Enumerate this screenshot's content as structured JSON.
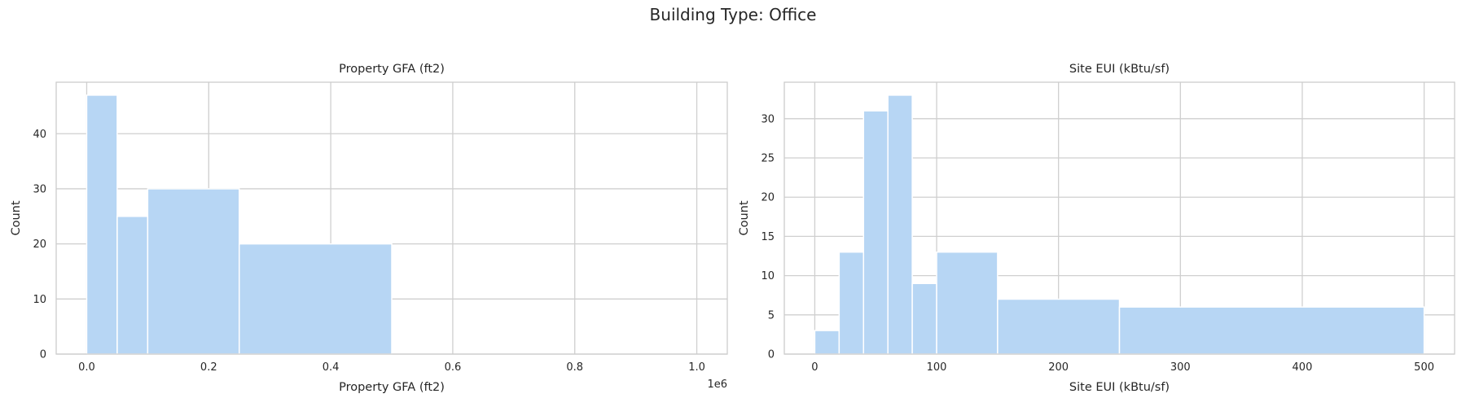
{
  "suptitle": "Building Type: Office",
  "colors": {
    "bar_fill": "#b7d6f4",
    "bar_edge": "#ffffff",
    "grid": "#cfcfcf",
    "frame": "#cccccc",
    "background": "#ffffff"
  },
  "chart_data": [
    {
      "type": "bar",
      "subtype": "histogram",
      "title": "Property GFA (ft2)",
      "xlabel": "Property GFA (ft2)",
      "ylabel": "Count",
      "x_offset_label": "1e6",
      "xlim": [
        -0.05,
        1.05
      ],
      "ylim": [
        0,
        49.35
      ],
      "xticks": [
        0.0,
        0.2,
        0.4,
        0.6,
        0.8,
        1.0
      ],
      "xtick_labels": [
        "0.0",
        "0.2",
        "0.4",
        "0.6",
        "0.8",
        "1.0"
      ],
      "yticks": [
        0,
        10,
        20,
        30,
        40
      ],
      "grid": true,
      "bins": [
        {
          "x0": 0.0,
          "x1": 0.05,
          "count": 47
        },
        {
          "x0": 0.05,
          "x1": 0.1,
          "count": 25
        },
        {
          "x0": 0.1,
          "x1": 0.25,
          "count": 30
        },
        {
          "x0": 0.25,
          "x1": 0.5,
          "count": 20
        }
      ]
    },
    {
      "type": "bar",
      "subtype": "histogram",
      "title": "Site EUI (kBtu/sf)",
      "xlabel": "Site EUI (kBtu/sf)",
      "ylabel": "Count",
      "xlim": [
        -25,
        525
      ],
      "ylim": [
        0,
        34.65
      ],
      "xticks": [
        0,
        100,
        200,
        300,
        400,
        500
      ],
      "xtick_labels": [
        "0",
        "100",
        "200",
        "300",
        "400",
        "500"
      ],
      "yticks": [
        0,
        5,
        10,
        15,
        20,
        25,
        30
      ],
      "grid": true,
      "bins": [
        {
          "x0": 0,
          "x1": 20,
          "count": 3
        },
        {
          "x0": 20,
          "x1": 40,
          "count": 13
        },
        {
          "x0": 40,
          "x1": 60,
          "count": 31
        },
        {
          "x0": 60,
          "x1": 80,
          "count": 33
        },
        {
          "x0": 80,
          "x1": 100,
          "count": 9
        },
        {
          "x0": 100,
          "x1": 150,
          "count": 13
        },
        {
          "x0": 150,
          "x1": 250,
          "count": 7
        },
        {
          "x0": 250,
          "x1": 500,
          "count": 6
        }
      ]
    }
  ]
}
